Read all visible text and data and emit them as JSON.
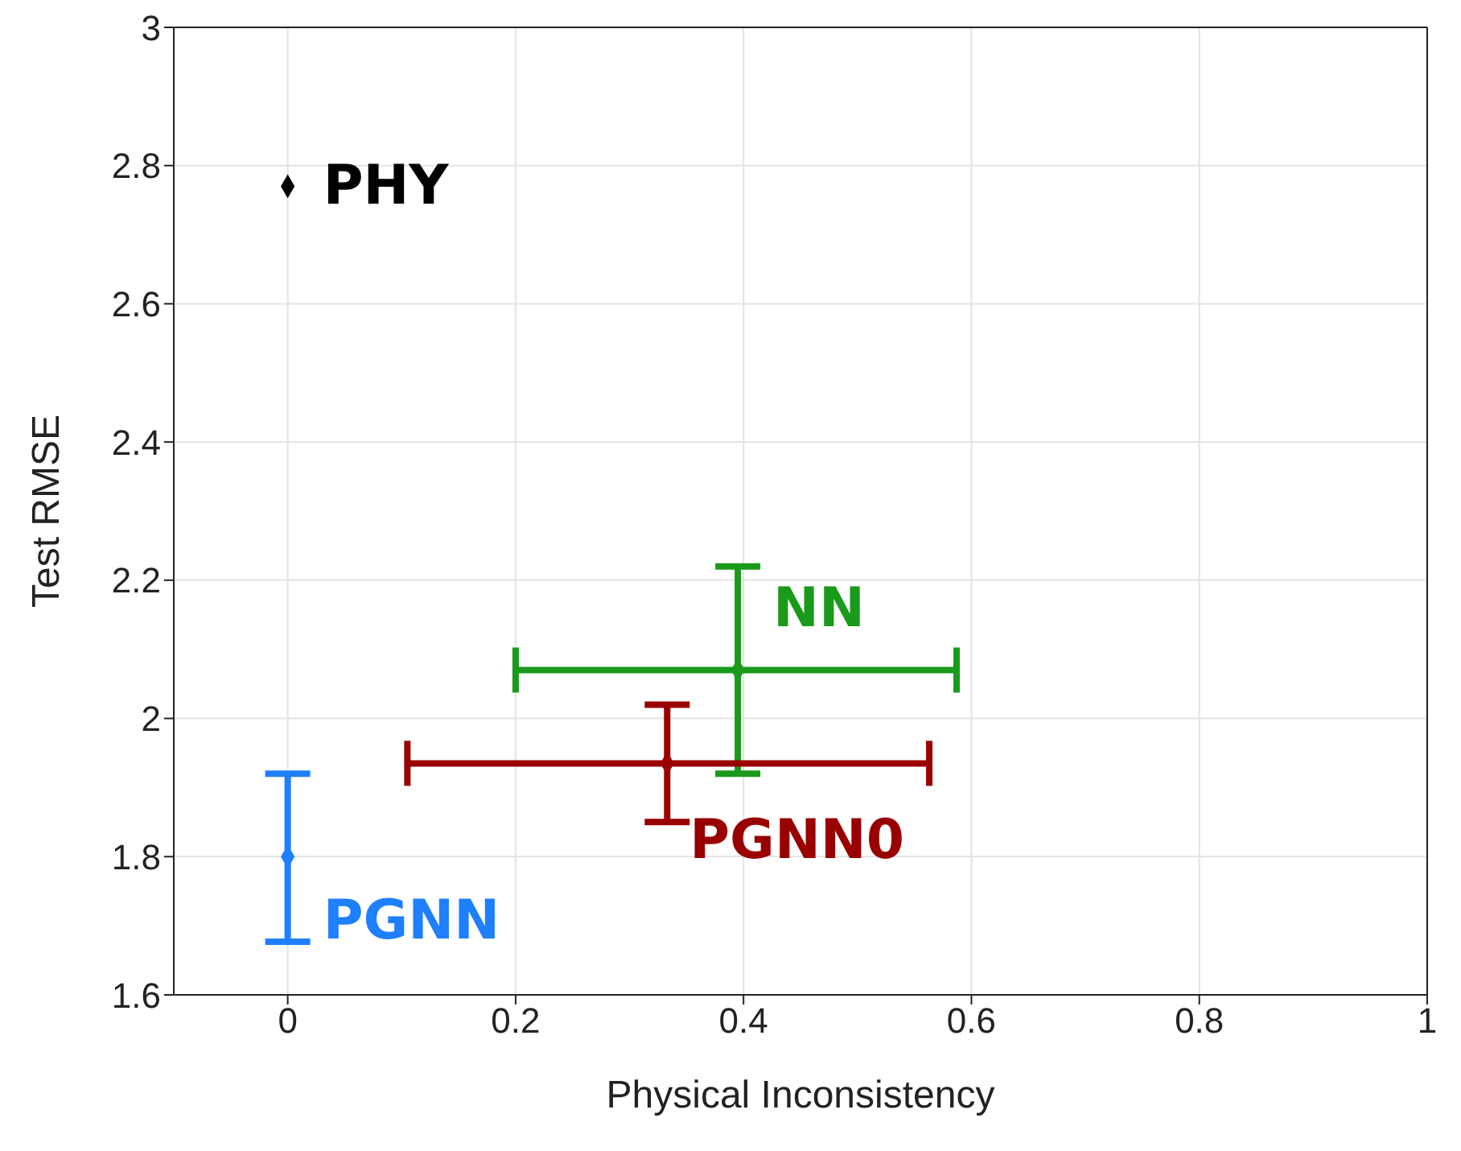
{
  "chart_data": {
    "type": "scatter",
    "xlabel": "Physical Inconsistency",
    "ylabel": "Test RMSE",
    "xlim": [
      -0.1,
      1
    ],
    "xticks": [
      0,
      0.2,
      0.4,
      0.6,
      0.8,
      1
    ],
    "ylim": [
      1.6,
      3
    ],
    "yticks": [
      1.6,
      1.8,
      2,
      2.2,
      2.4,
      2.6,
      2.8,
      3
    ],
    "grid": true,
    "marker": "diamond",
    "legend": false,
    "series": [
      {
        "name": "PHY",
        "color": "#000000",
        "x": [
          0
        ],
        "values": [
          2.77
        ]
      },
      {
        "name": "NN",
        "color": "#1a9a1a",
        "x": [
          0.395
        ],
        "values": [
          2.07
        ],
        "errors": [
          [
            1.92,
            2.22
          ]
        ],
        "xerrors": [
          [
            0.2,
            0.587
          ]
        ]
      },
      {
        "name": "PGNN0",
        "color": "#990000",
        "x": [
          0.333
        ],
        "values": [
          1.935
        ],
        "errors": [
          [
            1.85,
            2.02
          ]
        ],
        "xerrors": [
          [
            0.105,
            0.563
          ]
        ]
      },
      {
        "name": "PGNN",
        "color": "#1e7fff",
        "x": [
          0
        ],
        "values": [
          1.8
        ],
        "errors": [
          [
            1.677,
            1.92
          ]
        ]
      }
    ]
  }
}
